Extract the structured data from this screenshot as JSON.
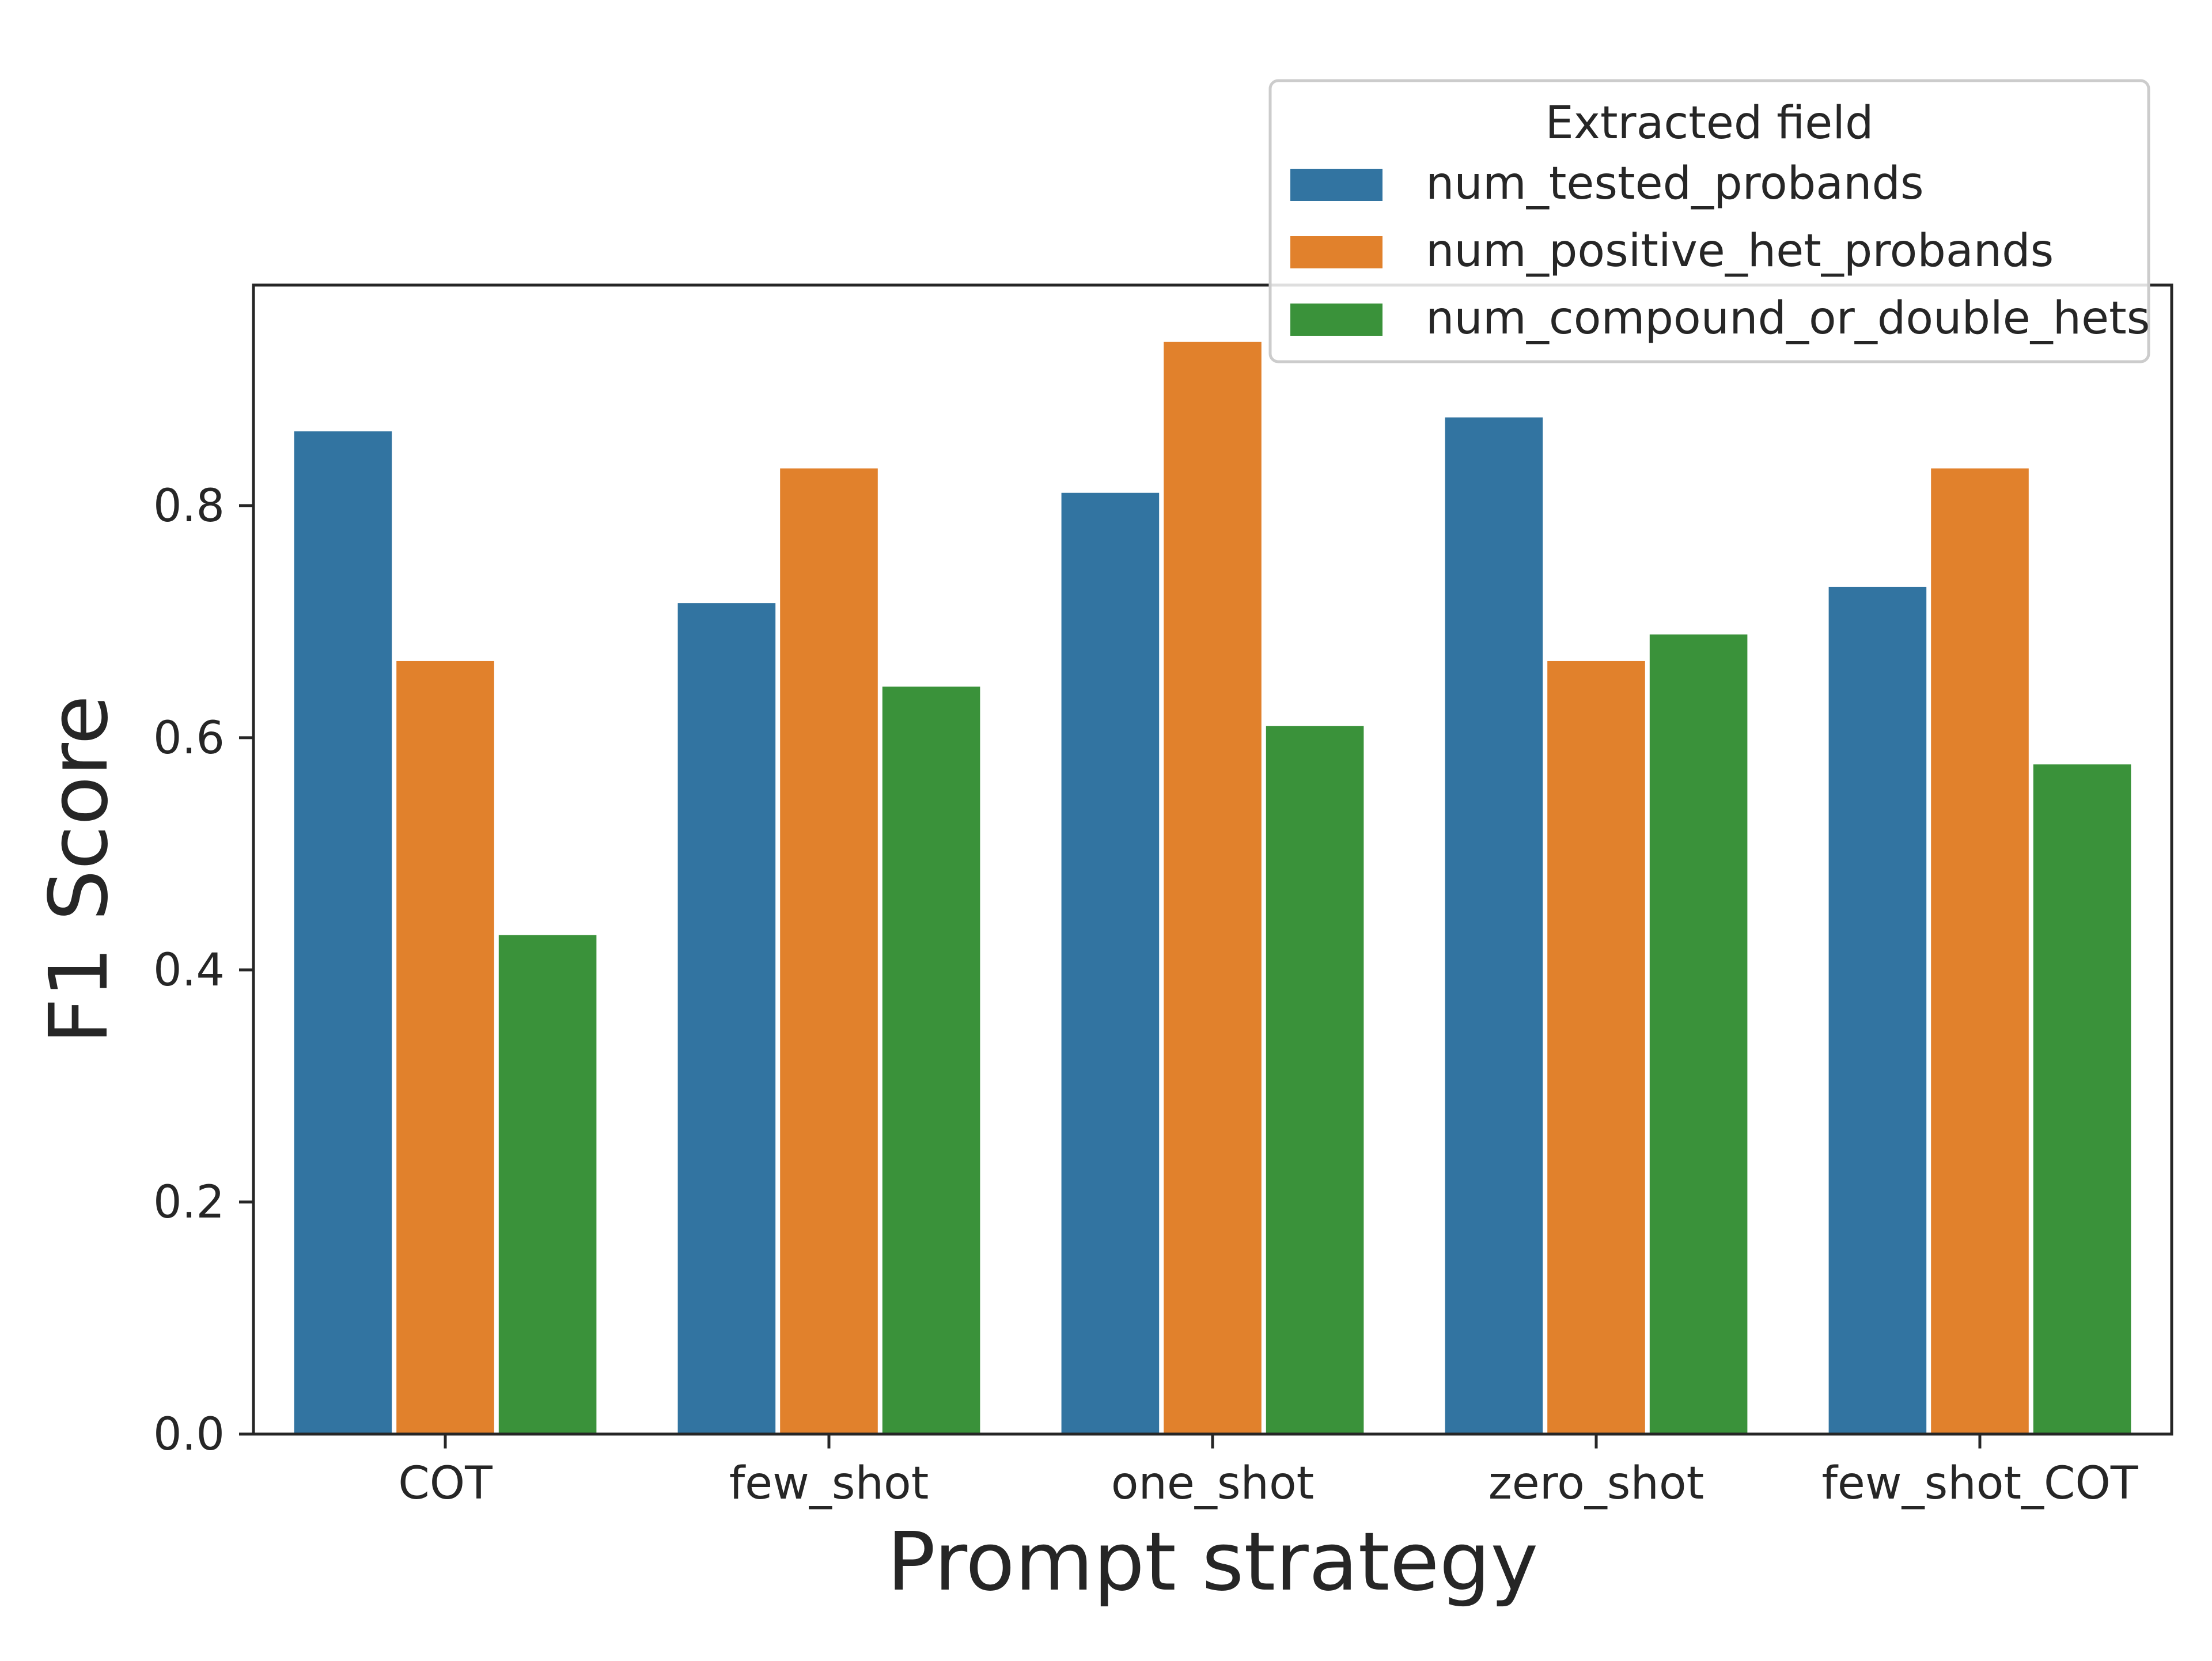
{
  "chart_data": {
    "type": "bar",
    "xlabel": "Prompt strategy",
    "ylabel": "F1 Score",
    "categories": [
      "COT",
      "few_shot",
      "one_shot",
      "zero_shot",
      "few_shot_COT"
    ],
    "y_ticks": [
      "0.0",
      "0.2",
      "0.4",
      "0.6",
      "0.8"
    ],
    "ylim": [
      0,
      0.99
    ],
    "grid": false,
    "legend": {
      "title": "Extracted field",
      "placement": "top-right"
    },
    "series": [
      {
        "name": "num_tested_probands",
        "color": "#3274a1",
        "values": [
          0.864,
          0.716,
          0.811,
          0.876,
          0.73
        ]
      },
      {
        "name": "num_positive_het_probands",
        "color": "#e1812c",
        "values": [
          0.666,
          0.832,
          0.941,
          0.666,
          0.832
        ]
      },
      {
        "name": "num_compound_or_double_hets",
        "color": "#3a923a",
        "values": [
          0.43,
          0.644,
          0.61,
          0.689,
          0.577
        ]
      }
    ]
  }
}
